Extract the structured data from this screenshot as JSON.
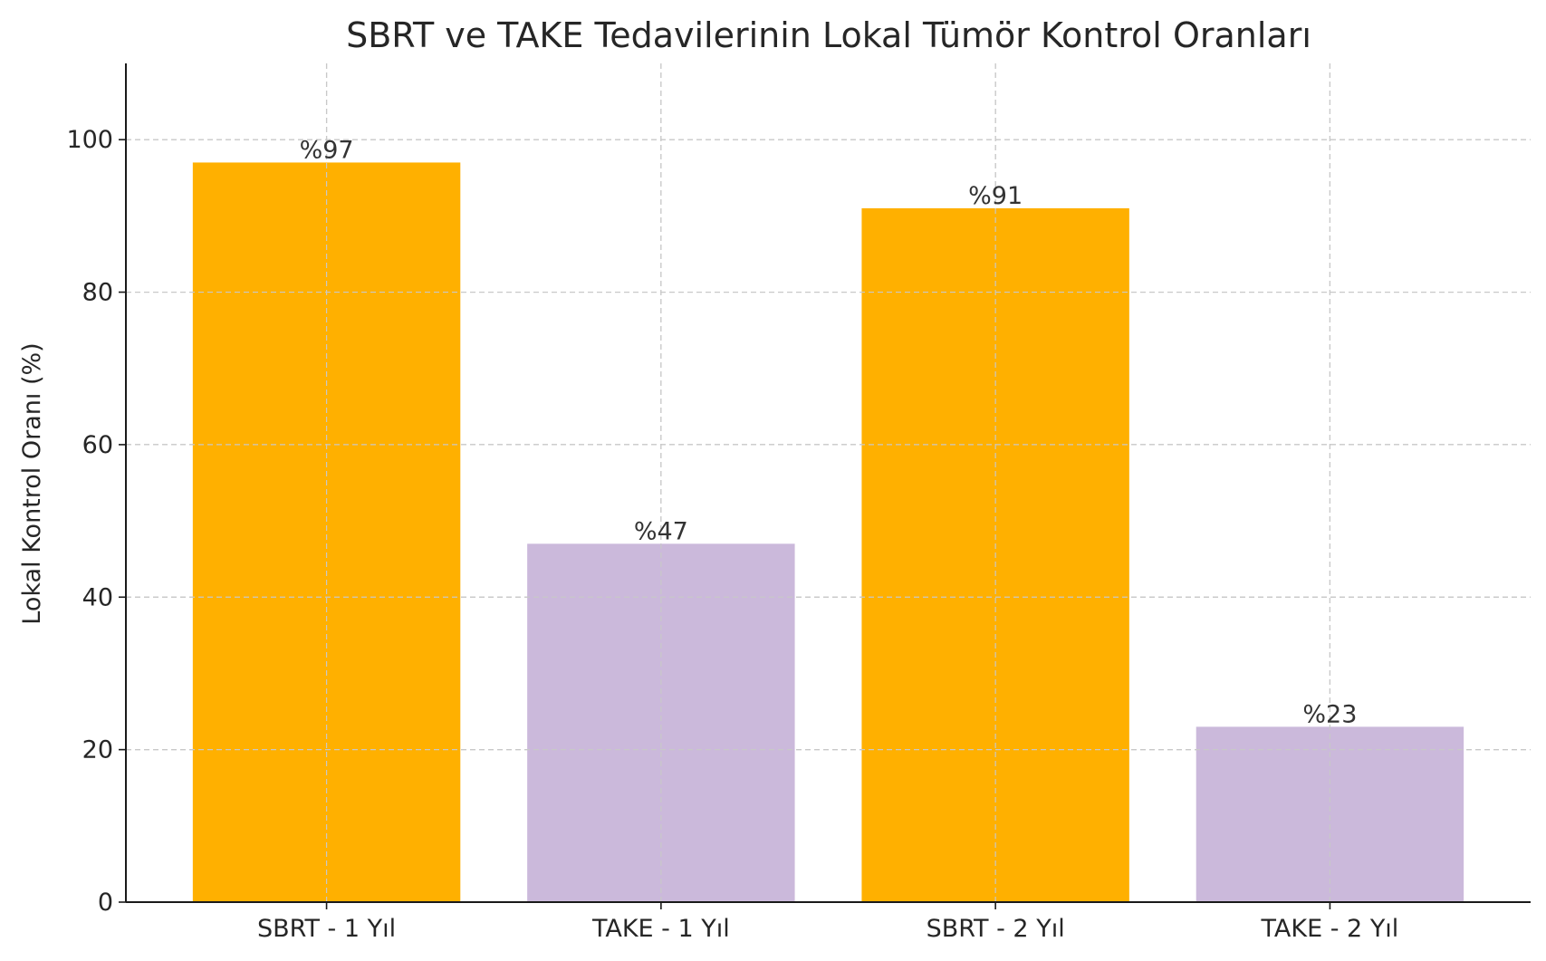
{
  "chart_data": {
    "type": "bar",
    "title": "SBRT ve TAKE Tedavilerinin Lokal Tümör Kontrol Oranları",
    "xlabel": "",
    "ylabel": "Lokal Kontrol Oranı (%)",
    "categories": [
      "SBRT - 1 Yıl",
      "TAKE - 1 Yıl",
      "SBRT - 2 Yıl",
      "TAKE - 2 Yıl"
    ],
    "values": [
      97,
      47,
      91,
      23
    ],
    "data_labels": [
      "%97",
      "%47",
      "%91",
      "%23"
    ],
    "bar_colors": [
      "#FFB000",
      "#CBB9DB",
      "#FFB000",
      "#CBB9DB"
    ],
    "ylim": [
      0,
      110
    ],
    "yticks": [
      0,
      20,
      40,
      60,
      80,
      100
    ],
    "grid": true
  }
}
